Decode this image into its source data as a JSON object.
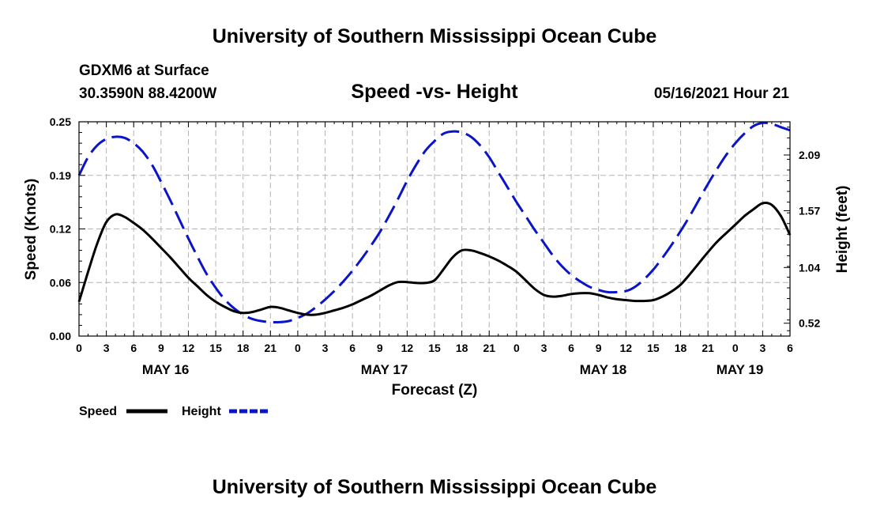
{
  "page": {
    "top_title": "University of Southern Mississippi Ocean Cube",
    "bottom_title": "University of Southern Mississippi Ocean Cube",
    "station": "GDXM6 at Surface",
    "coordinates": "30.3590N  88.4200W",
    "timestamp": "05/16/2021 Hour 21"
  },
  "chart_data": {
    "type": "line",
    "title": "Speed -vs- Height",
    "xlabel": "Forecast (Z)",
    "ylabel": "Speed (Knots)",
    "y2label": "Height (feet)",
    "ylim": [
      0,
      0.25
    ],
    "y2lim": [
      0.4,
      2.4
    ],
    "xlim": [
      0,
      78
    ],
    "grid": true,
    "y_ticks": [
      "0.00",
      "0.06",
      "0.12",
      "0.19",
      "0.25"
    ],
    "y_tick_values": [
      0,
      0.0625,
      0.125,
      0.1875,
      0.25
    ],
    "y2_ticks": [
      "0.52",
      "1.04",
      "1.57",
      "2.09"
    ],
    "y2_tick_values": [
      0.52,
      1.04,
      1.57,
      2.09
    ],
    "x_ticks": [
      "0",
      "3",
      "6",
      "9",
      "12",
      "15",
      "18",
      "21",
      "0",
      "3",
      "6",
      "9",
      "12",
      "15",
      "18",
      "21",
      "0",
      "3",
      "6",
      "9",
      "12",
      "15",
      "18",
      "21",
      "0",
      "3",
      "6"
    ],
    "x_tick_hours": [
      0,
      3,
      6,
      9,
      12,
      15,
      18,
      21,
      24,
      27,
      30,
      33,
      36,
      39,
      42,
      45,
      48,
      51,
      54,
      57,
      60,
      63,
      66,
      69,
      72,
      75,
      78
    ],
    "day_labels": [
      {
        "label": "MAY 16",
        "hour": 9.5
      },
      {
        "label": "MAY 17",
        "hour": 33.5
      },
      {
        "label": "MAY 18",
        "hour": 57.5
      },
      {
        "label": "MAY 19",
        "hour": 72.5
      }
    ],
    "legend": [
      "Speed",
      "Height"
    ],
    "series": [
      {
        "name": "Speed",
        "axis": "left",
        "color": "#000000",
        "style": "solid",
        "x": [
          0,
          1,
          2,
          3,
          4,
          5,
          6,
          7,
          8,
          9,
          10,
          11,
          12,
          13,
          14,
          15,
          16,
          17,
          18,
          19,
          20,
          21,
          22,
          23,
          24,
          25,
          26,
          27,
          28,
          29,
          30,
          31,
          32,
          33,
          34,
          35,
          36,
          37,
          38,
          39,
          40,
          41,
          42,
          43,
          44,
          45,
          46,
          47,
          48,
          49,
          50,
          51,
          52,
          53,
          54,
          55,
          56,
          57,
          58,
          59,
          60,
          61,
          62,
          63,
          64,
          65,
          66,
          67,
          68,
          69,
          70,
          71,
          72,
          73,
          74,
          75,
          76,
          77,
          78
        ],
        "values": [
          0.04,
          0.075,
          0.108,
          0.133,
          0.142,
          0.139,
          0.132,
          0.124,
          0.114,
          0.103,
          0.092,
          0.08,
          0.068,
          0.058,
          0.048,
          0.04,
          0.034,
          0.029,
          0.027,
          0.028,
          0.031,
          0.034,
          0.033,
          0.03,
          0.027,
          0.025,
          0.025,
          0.027,
          0.03,
          0.033,
          0.037,
          0.042,
          0.047,
          0.053,
          0.059,
          0.063,
          0.063,
          0.062,
          0.062,
          0.065,
          0.078,
          0.092,
          0.1,
          0.1,
          0.097,
          0.093,
          0.088,
          0.082,
          0.075,
          0.065,
          0.055,
          0.048,
          0.046,
          0.047,
          0.049,
          0.05,
          0.05,
          0.048,
          0.045,
          0.043,
          0.042,
          0.041,
          0.041,
          0.042,
          0.046,
          0.052,
          0.06,
          0.072,
          0.085,
          0.098,
          0.11,
          0.12,
          0.13,
          0.14,
          0.148,
          0.155,
          0.153,
          0.14,
          0.118
        ]
      },
      {
        "name": "Height",
        "axis": "right",
        "color": "#0a14c8",
        "style": "dashed",
        "x": [
          0,
          1,
          2,
          3,
          4,
          5,
          6,
          7,
          8,
          9,
          10,
          11,
          12,
          13,
          14,
          15,
          16,
          17,
          18,
          19,
          20,
          21,
          22,
          23,
          24,
          25,
          26,
          27,
          28,
          29,
          30,
          31,
          32,
          33,
          34,
          35,
          36,
          37,
          38,
          39,
          40,
          41,
          42,
          43,
          44,
          45,
          46,
          47,
          48,
          49,
          50,
          51,
          52,
          53,
          54,
          55,
          56,
          57,
          58,
          59,
          60,
          61,
          62,
          63,
          64,
          65,
          66,
          67,
          68,
          69,
          70,
          71,
          72,
          73,
          74,
          75,
          76,
          77,
          78
        ],
        "values": [
          1.9,
          2.07,
          2.18,
          2.24,
          2.26,
          2.25,
          2.2,
          2.12,
          2.0,
          1.84,
          1.67,
          1.49,
          1.31,
          1.14,
          0.98,
          0.85,
          0.74,
          0.66,
          0.6,
          0.56,
          0.54,
          0.53,
          0.53,
          0.54,
          0.57,
          0.61,
          0.67,
          0.74,
          0.82,
          0.91,
          1.01,
          1.12,
          1.24,
          1.37,
          1.52,
          1.68,
          1.85,
          2.0,
          2.13,
          2.22,
          2.29,
          2.31,
          2.3,
          2.26,
          2.18,
          2.07,
          1.93,
          1.79,
          1.65,
          1.52,
          1.39,
          1.27,
          1.15,
          1.05,
          0.97,
          0.91,
          0.86,
          0.83,
          0.81,
          0.81,
          0.82,
          0.86,
          0.93,
          1.02,
          1.13,
          1.25,
          1.38,
          1.52,
          1.67,
          1.82,
          1.96,
          2.09,
          2.2,
          2.29,
          2.36,
          2.39,
          2.38,
          2.35,
          2.32
        ]
      }
    ]
  }
}
